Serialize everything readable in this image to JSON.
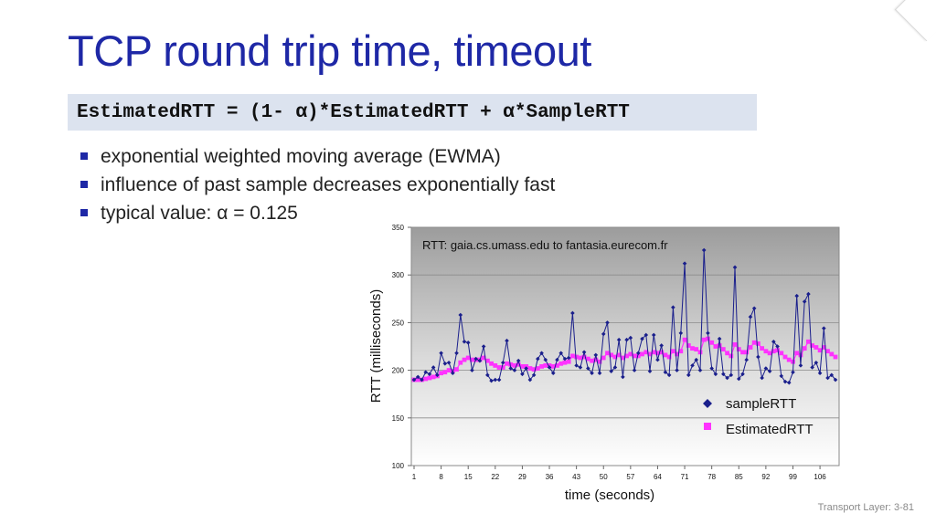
{
  "slide": {
    "title": "TCP round trip time, timeout",
    "formula": "EstimatedRTT = (1- α)*EstimatedRTT + α*SampleRTT",
    "bullets": [
      "exponential weighted moving average (EWMA)",
      "influence of past sample decreases exponentially fast",
      "typical value: α = 0.125"
    ],
    "footer": "Transport Layer: 3-81"
  },
  "colors": {
    "title": "#1e28a6",
    "formula_bg": "#dce3ef",
    "sample": "#1a1f8c",
    "estimated": "#ff33ff"
  },
  "chart_data": {
    "type": "line",
    "title": "RTT: gaia.cs.umass.edu to fantasia.eurecom.fr",
    "xlabel": "time (seconds)",
    "ylabel": "RTT (milliseconds)",
    "ylim": [
      100,
      350
    ],
    "yticks": [
      100,
      150,
      200,
      250,
      300,
      350
    ],
    "xticks": [
      1,
      8,
      15,
      22,
      29,
      36,
      43,
      50,
      57,
      64,
      71,
      78,
      85,
      92,
      99,
      106
    ],
    "xlim": [
      1,
      110
    ],
    "legend_position": "bottom-right",
    "background": "gradient-gray",
    "grid": "horizontal",
    "series": [
      {
        "name": "sampleRTT",
        "marker": "diamond",
        "x": [
          1,
          2,
          3,
          4,
          5,
          6,
          7,
          8,
          9,
          10,
          11,
          12,
          13,
          14,
          15,
          16,
          17,
          18,
          19,
          20,
          21,
          22,
          23,
          24,
          25,
          26,
          27,
          28,
          29,
          30,
          31,
          32,
          33,
          34,
          35,
          36,
          37,
          38,
          39,
          40,
          41,
          42,
          43,
          44,
          45,
          46,
          47,
          48,
          49,
          50,
          51,
          52,
          53,
          54,
          55,
          56,
          57,
          58,
          59,
          60,
          61,
          62,
          63,
          64,
          65,
          66,
          67,
          68,
          69,
          70,
          71,
          72,
          73,
          74,
          75,
          76,
          77,
          78,
          79,
          80,
          81,
          82,
          83,
          84,
          85,
          86,
          87,
          88,
          89,
          90,
          91,
          92,
          93,
          94,
          95,
          96,
          97,
          98,
          99,
          100,
          101,
          102,
          103,
          104,
          105,
          106,
          107,
          108,
          109,
          110
        ],
        "values": [
          190,
          193,
          190,
          198,
          196,
          203,
          195,
          218,
          207,
          208,
          197,
          218,
          258,
          230,
          229,
          200,
          212,
          210,
          225,
          195,
          189,
          190,
          190,
          208,
          231,
          202,
          200,
          210,
          196,
          202,
          190,
          195,
          212,
          218,
          211,
          203,
          197,
          211,
          218,
          212,
          213,
          260,
          205,
          203,
          219,
          202,
          197,
          216,
          197,
          238,
          250,
          199,
          203,
          232,
          193,
          232,
          234,
          200,
          218,
          233,
          237,
          199,
          237,
          211,
          226,
          198,
          195,
          266,
          200,
          239,
          312,
          195,
          205,
          211,
          200,
          326,
          239,
          202,
          196,
          233,
          196,
          192,
          195,
          308,
          191,
          196,
          211,
          256,
          265,
          214,
          192,
          202,
          199,
          230,
          225,
          194,
          188,
          187,
          198,
          278,
          205,
          272,
          280,
          203,
          208,
          197,
          244,
          192,
          195,
          190
        ]
      },
      {
        "name": "EstimatedRTT",
        "marker": "square",
        "x": [
          1,
          2,
          3,
          4,
          5,
          6,
          7,
          8,
          9,
          10,
          11,
          12,
          13,
          14,
          15,
          16,
          17,
          18,
          19,
          20,
          21,
          22,
          23,
          24,
          25,
          26,
          27,
          28,
          29,
          30,
          31,
          32,
          33,
          34,
          35,
          36,
          37,
          38,
          39,
          40,
          41,
          42,
          43,
          44,
          45,
          46,
          47,
          48,
          49,
          50,
          51,
          52,
          53,
          54,
          55,
          56,
          57,
          58,
          59,
          60,
          61,
          62,
          63,
          64,
          65,
          66,
          67,
          68,
          69,
          70,
          71,
          72,
          73,
          74,
          75,
          76,
          77,
          78,
          79,
          80,
          81,
          82,
          83,
          84,
          85,
          86,
          87,
          88,
          89,
          90,
          91,
          92,
          93,
          94,
          95,
          96,
          97,
          98,
          99,
          100,
          101,
          102,
          103,
          104,
          105,
          106,
          107,
          108,
          109,
          110
        ],
        "values": [
          190,
          190,
          190,
          191,
          192,
          193,
          194,
          197,
          198,
          200,
          199,
          201,
          208,
          211,
          213,
          211,
          211,
          211,
          213,
          210,
          207,
          205,
          203,
          203,
          207,
          206,
          205,
          206,
          204,
          204,
          202,
          201,
          202,
          204,
          205,
          205,
          204,
          205,
          207,
          208,
          209,
          215,
          214,
          213,
          214,
          212,
          210,
          211,
          209,
          213,
          218,
          216,
          214,
          216,
          213,
          215,
          217,
          215,
          215,
          217,
          219,
          217,
          219,
          218,
          219,
          216,
          214,
          220,
          217,
          220,
          232,
          226,
          223,
          222,
          219,
          232,
          233,
          229,
          225,
          226,
          222,
          218,
          215,
          227,
          222,
          219,
          219,
          224,
          229,
          228,
          223,
          220,
          218,
          220,
          221,
          218,
          214,
          211,
          209,
          218,
          216,
          223,
          230,
          226,
          224,
          221,
          224,
          220,
          217,
          214
        ]
      }
    ]
  }
}
